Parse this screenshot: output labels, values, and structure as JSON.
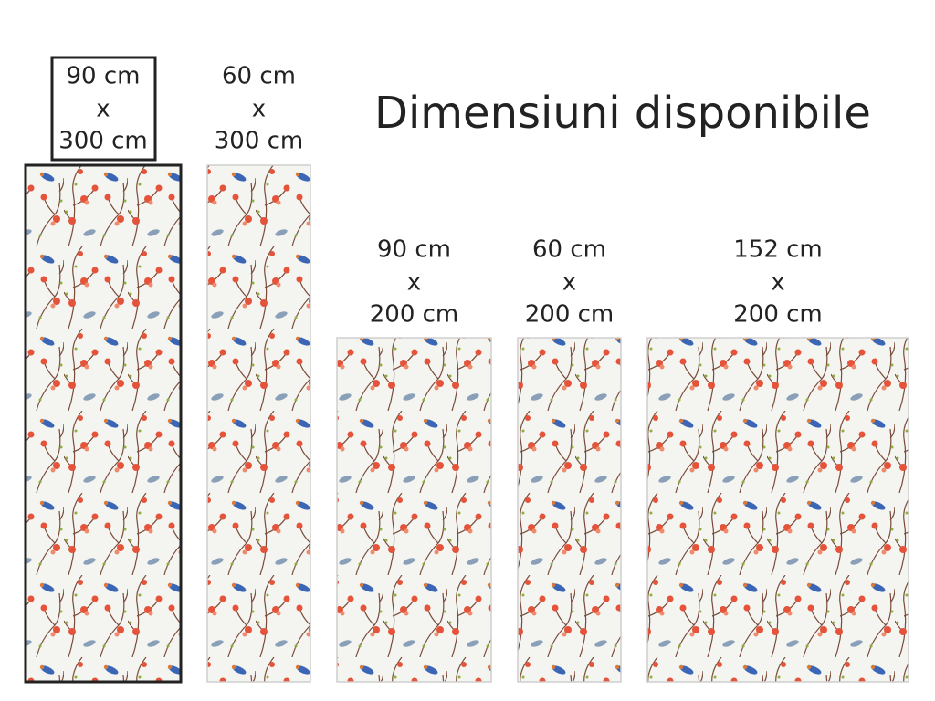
{
  "title": "Dimensiuni disponibile",
  "options": [
    {
      "width": "90 cm",
      "separator": "x",
      "height": "300 cm",
      "selected": true
    },
    {
      "width": "60 cm",
      "separator": "x",
      "height": "300 cm",
      "selected": false
    },
    {
      "width": "90 cm",
      "separator": "x",
      "height": "200 cm",
      "selected": false
    },
    {
      "width": "60 cm",
      "separator": "x",
      "height": "200 cm",
      "selected": false
    },
    {
      "width": "152 cm",
      "separator": "x",
      "height": "200 cm",
      "selected": false
    }
  ]
}
